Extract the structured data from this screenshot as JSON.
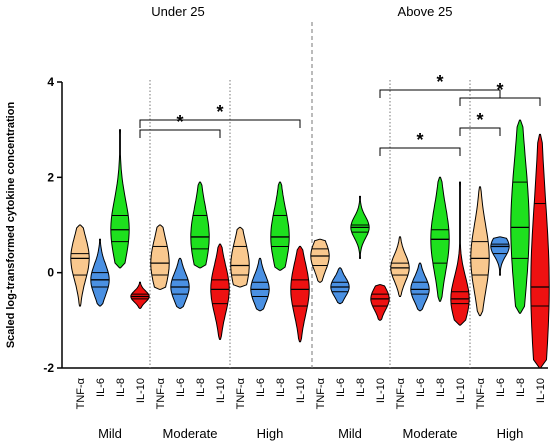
{
  "chart_data": {
    "type": "violin",
    "ylabel": "Scaled log-transformed cytokine concentration",
    "ylim": [
      -2,
      4
    ],
    "yticks": [
      -2,
      0,
      2,
      4
    ],
    "panels": [
      {
        "title": "Under 25",
        "groups": [
          {
            "label": "Mild",
            "violins": [
              {
                "cytokine": "TNF-α",
                "min": -0.7,
                "max": 1.0,
                "q1": -0.05,
                "median": 0.3,
                "q3": 0.4
              },
              {
                "cytokine": "IL-6",
                "min": -0.7,
                "max": 0.7,
                "q1": -0.3,
                "median": -0.15,
                "q3": 0.0
              },
              {
                "cytokine": "IL-8",
                "min": 0.1,
                "max": 3.0,
                "q1": 0.65,
                "median": 0.9,
                "q3": 1.2
              },
              {
                "cytokine": "IL-10",
                "min": -0.75,
                "max": -0.2,
                "q1": -0.55,
                "median": -0.5,
                "q3": -0.45
              }
            ]
          },
          {
            "label": "Moderate",
            "violins": [
              {
                "cytokine": "TNF-α",
                "min": -0.35,
                "max": 1.0,
                "q1": -0.05,
                "median": 0.2,
                "q3": 0.55
              },
              {
                "cytokine": "IL-6",
                "min": -0.75,
                "max": 0.3,
                "q1": -0.45,
                "median": -0.3,
                "q3": -0.15
              },
              {
                "cytokine": "IL-8",
                "min": 0.1,
                "max": 1.9,
                "q1": 0.5,
                "median": 0.75,
                "q3": 1.2
              },
              {
                "cytokine": "IL-10",
                "min": -1.4,
                "max": 0.6,
                "q1": -0.65,
                "median": -0.35,
                "q3": -0.15
              }
            ]
          },
          {
            "label": "High",
            "violins": [
              {
                "cytokine": "TNF-α",
                "min": -0.3,
                "max": 0.95,
                "q1": -0.05,
                "median": 0.15,
                "q3": 0.55
              },
              {
                "cytokine": "IL-6",
                "min": -0.8,
                "max": 0.3,
                "q1": -0.5,
                "median": -0.35,
                "q3": -0.2
              },
              {
                "cytokine": "IL-8",
                "min": 0.05,
                "max": 1.9,
                "q1": 0.55,
                "median": 0.75,
                "q3": 1.2
              },
              {
                "cytokine": "IL-10",
                "min": -1.45,
                "max": 0.55,
                "q1": -0.7,
                "median": -0.35,
                "q3": -0.15
              }
            ]
          }
        ]
      },
      {
        "title": "Above 25",
        "groups": [
          {
            "label": "Mild",
            "violins": [
              {
                "cytokine": "TNF-α",
                "min": -0.2,
                "max": 0.7,
                "q1": 0.15,
                "median": 0.35,
                "q3": 0.5
              },
              {
                "cytokine": "IL-6",
                "min": -0.65,
                "max": 0.1,
                "q1": -0.4,
                "median": -0.3,
                "q3": -0.2
              },
              {
                "cytokine": "IL-8",
                "min": 0.3,
                "max": 1.6,
                "q1": 0.85,
                "median": 0.95,
                "q3": 1.0
              },
              {
                "cytokine": "IL-10",
                "min": -1.0,
                "max": -0.25,
                "q1": -0.7,
                "median": -0.55,
                "q3": -0.45
              }
            ]
          },
          {
            "label": "Moderate",
            "violins": [
              {
                "cytokine": "TNF-α",
                "min": -0.5,
                "max": 0.75,
                "q1": -0.05,
                "median": 0.1,
                "q3": 0.2
              },
              {
                "cytokine": "IL-6",
                "min": -0.8,
                "max": 0.2,
                "q1": -0.45,
                "median": -0.35,
                "q3": -0.2
              },
              {
                "cytokine": "IL-8",
                "min": -0.6,
                "max": 2.0,
                "q1": 0.2,
                "median": 0.7,
                "q3": 0.9
              },
              {
                "cytokine": "IL-10",
                "min": -1.1,
                "max": 1.9,
                "q1": -0.65,
                "median": -0.55,
                "q3": -0.4
              }
            ]
          },
          {
            "label": "High",
            "violins": [
              {
                "cytokine": "TNF-α",
                "min": -0.9,
                "max": 1.8,
                "q1": -0.05,
                "median": 0.3,
                "q3": 0.65
              },
              {
                "cytokine": "IL-6",
                "min": -0.05,
                "max": 0.75,
                "q1": 0.4,
                "median": 0.55,
                "q3": 0.6
              },
              {
                "cytokine": "IL-8",
                "min": -0.85,
                "max": 3.2,
                "q1": 0.3,
                "median": 0.95,
                "q3": 1.9
              },
              {
                "cytokine": "IL-10",
                "min": -2.0,
                "max": 2.9,
                "q1": -0.7,
                "median": -0.3,
                "q3": 1.45
              }
            ]
          }
        ]
      }
    ],
    "significance": [
      {
        "panel": 0,
        "from": [
          0,
          3
        ],
        "to": [
          1,
          3
        ],
        "label": "*"
      },
      {
        "panel": 0,
        "from": [
          0,
          3
        ],
        "to": [
          2,
          3
        ],
        "label": "*"
      },
      {
        "panel": 1,
        "from": [
          0,
          3
        ],
        "to": [
          1,
          3
        ],
        "label": "*"
      },
      {
        "panel": 1,
        "from": [
          0,
          3
        ],
        "to": [
          2,
          1
        ],
        "label": "*"
      },
      {
        "panel": 1,
        "from": [
          1,
          3
        ],
        "to": [
          2,
          1
        ],
        "label": "*"
      },
      {
        "panel": 1,
        "from": [
          1,
          3
        ],
        "to": [
          2,
          3
        ],
        "label": "*"
      }
    ],
    "colors": {
      "TNF-α": "#f9c88e",
      "IL-6": "#4a90e2",
      "IL-8": "#1ee01e",
      "IL-10": "#ee1111"
    },
    "grid": false
  }
}
